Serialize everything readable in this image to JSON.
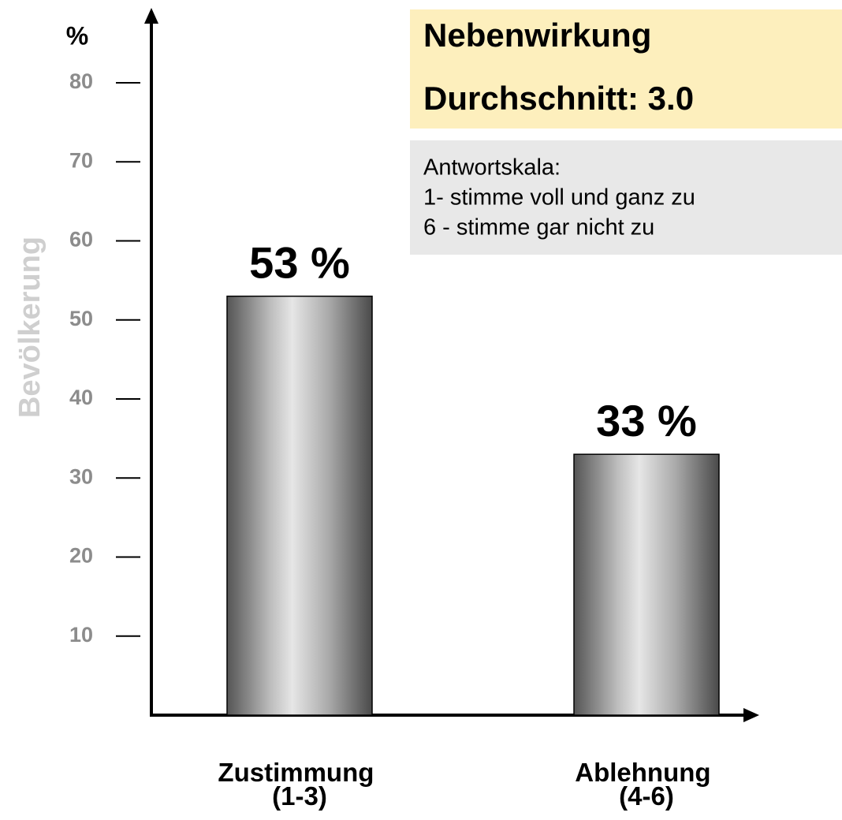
{
  "chart_data": {
    "type": "bar",
    "y_unit": "%",
    "ylabel": "Bevölkerung",
    "title": "Nebenwirkung",
    "subtitle": "Durchschnitt: 3.0",
    "note": [
      "Antwortskala:",
      "1- stimme voll und ganz zu",
      "6 - stimme gar nicht zu"
    ],
    "categories": [
      "Zustimmung (1-3)",
      "Ablehnung (4-6)"
    ],
    "values": [
      53,
      33
    ],
    "value_labels": [
      "53 %",
      "33 %"
    ],
    "color": "#a0a0a0",
    "ylim": [
      0,
      80
    ],
    "yticks": [
      10,
      20,
      30,
      40,
      50,
      60,
      70,
      80
    ]
  }
}
